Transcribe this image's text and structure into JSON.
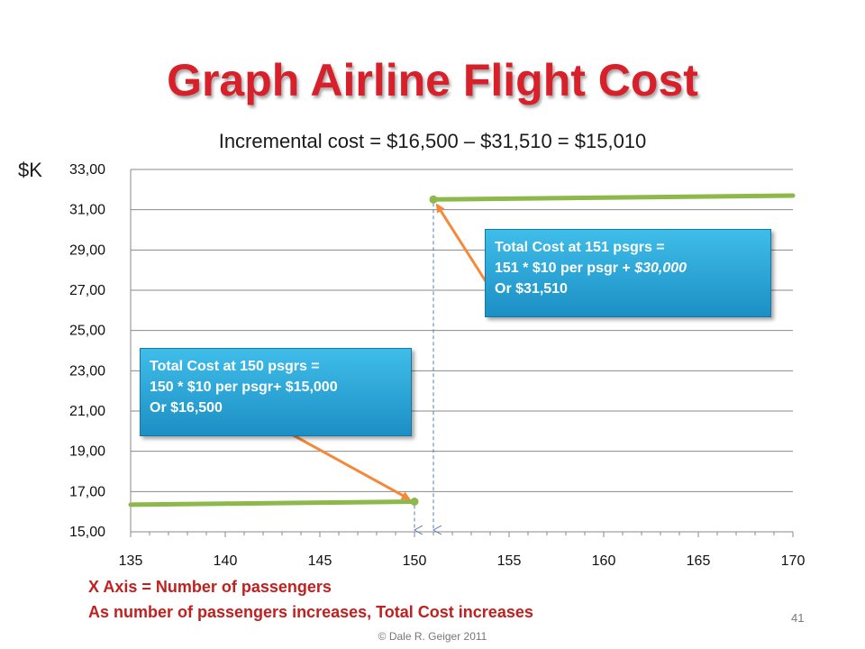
{
  "slide": {
    "title": "Graph Airline Flight Cost",
    "y_unit_label": "$K",
    "notes": [
      "X Axis = Number of passengers",
      "As number of passengers increases, Total Cost increases"
    ],
    "page_number": "41",
    "copyright": "© Dale R. Geiger 2011"
  },
  "callouts": {
    "c150": {
      "line1": "Total Cost at 150 psgrs =",
      "line2": "150 * $10 per psgr+ $15,000",
      "line3": "Or $16,500"
    },
    "c151": {
      "line1": "Total Cost at 151 psgrs =",
      "line2a": "151 * $10 per psgr + ",
      "line2b": "$30,000",
      "line3": "Or $31,510"
    }
  },
  "colors": {
    "series": "#8db84a",
    "arrow": "#f5893a",
    "callout": "#2aa6d8",
    "title": "#d8202a",
    "notes": "#c0201f",
    "dashed_guide": "#5a7fb5"
  },
  "chart_data": {
    "type": "line",
    "title": "Incremental cost = $16,500 – $31,510 = $15,010",
    "xlabel": "",
    "ylabel": "$K",
    "xlim": [
      135,
      170
    ],
    "ylim": [
      15,
      33
    ],
    "x_ticks": [
      "135",
      "140",
      "145",
      "150",
      "155",
      "160",
      "165",
      "170"
    ],
    "y_ticks": [
      "15,00",
      "17,00",
      "19,00",
      "21,00",
      "23,00",
      "25,00",
      "27,00",
      "29,00",
      "31,00",
      "33,00"
    ],
    "grid": "horizontal",
    "series": [
      {
        "segment": "low",
        "points": [
          [
            135,
            16.35
          ],
          [
            140,
            16.4
          ],
          [
            145,
            16.45
          ],
          [
            150,
            16.5
          ]
        ]
      },
      {
        "segment": "high",
        "points": [
          [
            151,
            31.51
          ],
          [
            155,
            31.55
          ],
          [
            160,
            31.6
          ],
          [
            165,
            31.65
          ],
          [
            170,
            31.7
          ]
        ]
      }
    ],
    "highlighted_points": [
      [
        150,
        16.5
      ],
      [
        151,
        31.51
      ]
    ]
  }
}
